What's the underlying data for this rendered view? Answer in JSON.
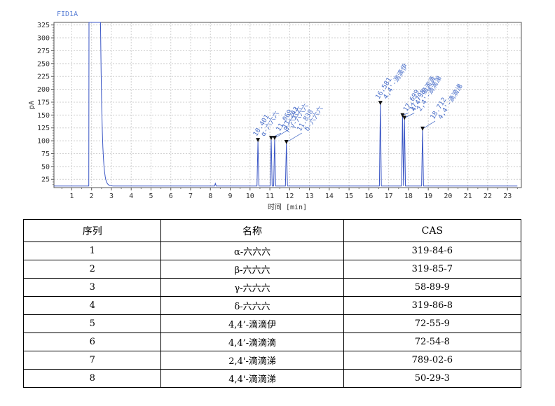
{
  "chart_data": {
    "type": "line",
    "detector_label": "FID1A",
    "ylabel": "pA",
    "xlabel": "时间 [min]",
    "xlim": [
      0.1,
      23.7
    ],
    "ylim": [
      9,
      330
    ],
    "xticks": [
      1,
      2,
      3,
      4,
      5,
      6,
      7,
      8,
      9,
      10,
      11,
      12,
      13,
      14,
      15,
      16,
      17,
      18,
      19,
      20,
      21,
      22,
      23
    ],
    "yticks": [
      25,
      50,
      75,
      100,
      125,
      150,
      175,
      200,
      225,
      250,
      275,
      300,
      325
    ],
    "grid": true,
    "line_color": "#3a56c5",
    "baseline": 12,
    "solvent_peak": {
      "start": 1.87,
      "end": 2.5,
      "apex": 330
    },
    "minor_peak": {
      "x": 8.25,
      "y": 17
    },
    "peaks": [
      {
        "rt": 10.401,
        "height": 100,
        "label": "10.401",
        "compound": "α-六六六"
      },
      {
        "rt": 11.069,
        "height": 104,
        "label": "11.069",
        "compound": "β-六六六"
      },
      {
        "rt": 11.243,
        "height": 104,
        "label": "11.243",
        "compound": "γ-六六六"
      },
      {
        "rt": 11.838,
        "height": 96,
        "label": "11.838",
        "compound": "δ-六六六"
      },
      {
        "rt": 16.581,
        "height": 172,
        "label": "16.581",
        "compound": "4,4'-滴滴伊"
      },
      {
        "rt": 17.699,
        "height": 148,
        "label": "17.699",
        "compound": "4,4'-滴滴滴"
      },
      {
        "rt": 17.798,
        "height": 143,
        "label": "17.798",
        "compound": "2,4'-滴滴涕"
      },
      {
        "rt": 18.712,
        "height": 122,
        "label": "18.712",
        "compound": "4,4'-滴滴涕"
      }
    ]
  },
  "table": {
    "headers": [
      "序列",
      "名称",
      "CAS"
    ],
    "rows": [
      [
        "1",
        "α-六六六",
        "319-84-6"
      ],
      [
        "2",
        "β-六六六",
        "319-85-7"
      ],
      [
        "3",
        "γ-六六六",
        "58-89-9"
      ],
      [
        "4",
        "δ-六六六",
        "319-86-8"
      ],
      [
        "5",
        "4,4’-滴滴伊",
        "72-55-9"
      ],
      [
        "6",
        "4,4’-滴滴滴",
        "72-54-8"
      ],
      [
        "7",
        "2,4'-滴滴涕",
        "789-02-6"
      ],
      [
        "8",
        "4,4'-滴滴涕",
        "50-29-3"
      ]
    ]
  }
}
